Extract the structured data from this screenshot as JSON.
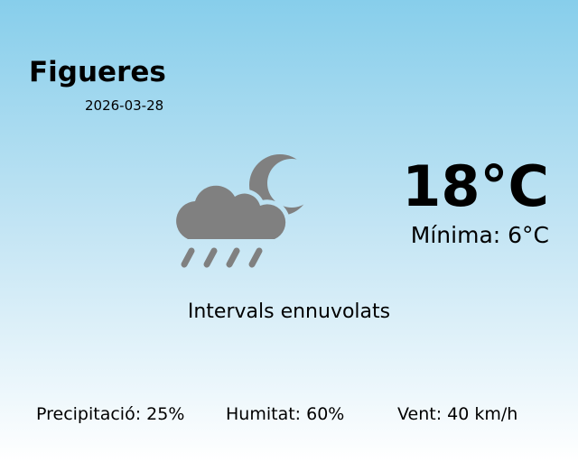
{
  "city": "Figueres",
  "date": "2026-03-28",
  "temperature": "18°C",
  "minimum": "Mínima: 6°C",
  "condition": "Intervals ennuvolats",
  "icon": "cloud-rain-moon-icon",
  "icon_color": "#808080",
  "stats": {
    "precipitation": "Precipitació: 25%",
    "humidity": "Humitat: 60%",
    "wind": "Vent: 40 km/h"
  }
}
